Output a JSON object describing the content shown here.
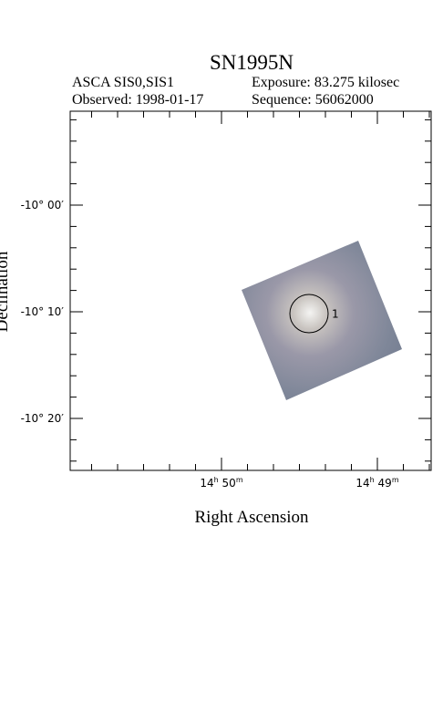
{
  "header": {
    "title": "SN1995N",
    "lines": [
      [
        "ASCA SIS0,SIS1",
        "Exposure: 83.275 kilosec"
      ],
      [
        "Observed: 1998-01-17",
        "Sequence: 56062000"
      ]
    ]
  },
  "axes": {
    "y": {
      "label": "Declination",
      "ticks": [
        "-10° 00′",
        "-10° 10′",
        "-10° 20′"
      ]
    },
    "x": {
      "label": "Right Ascension",
      "ticks": [
        [
          "14",
          "h",
          " 50",
          "m"
        ],
        [
          "14",
          "h",
          " 49",
          "m"
        ]
      ]
    }
  },
  "source": {
    "label": "1"
  }
}
